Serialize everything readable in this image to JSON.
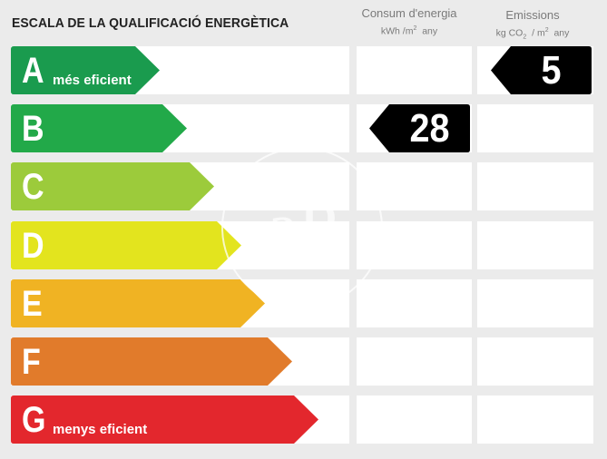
{
  "header": {
    "title": "ESCALA DE LA QUALIFICACIÓ ENERGÈTICA",
    "consum": {
      "label": "Consum d'energia",
      "unit_a": "kWh /m",
      "unit_sup": "2",
      "unit_b": "any"
    },
    "emissions": {
      "label": "Emissions",
      "unit_a": "kg CO",
      "unit_sub": "2",
      "unit_c": "/ m",
      "unit_sup": "2",
      "unit_d": "any"
    }
  },
  "scale": [
    {
      "letter": "A",
      "sublabel": "més eficient",
      "color": "#1a9b4e",
      "fill_fraction": 0.44
    },
    {
      "letter": "B",
      "sublabel": "",
      "color": "#22a949",
      "fill_fraction": 0.52
    },
    {
      "letter": "C",
      "sublabel": "",
      "color": "#9ccb3b",
      "fill_fraction": 0.6
    },
    {
      "letter": "D",
      "sublabel": "",
      "color": "#e3e41e",
      "fill_fraction": 0.68
    },
    {
      "letter": "E",
      "sublabel": "",
      "color": "#f0b323",
      "fill_fraction": 0.75
    },
    {
      "letter": "F",
      "sublabel": "",
      "color": "#e17b2b",
      "fill_fraction": 0.83
    },
    {
      "letter": "G",
      "sublabel": "menys eficient",
      "color": "#e3272d",
      "fill_fraction": 0.91
    }
  ],
  "consumption_rating": {
    "letter": "B",
    "value": "28"
  },
  "emissions_rating": {
    "letter": "A",
    "value": "5"
  },
  "watermark": {
    "text": "aP"
  }
}
